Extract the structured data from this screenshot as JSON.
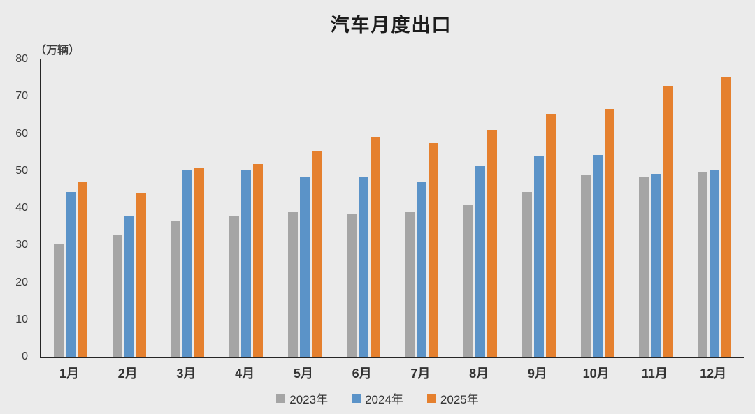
{
  "page": {
    "background_color": "#ebebeb",
    "axis_color": "#262626"
  },
  "chart_data": {
    "type": "bar",
    "title": "汽车月度出口",
    "unit_label": "（万辆）",
    "categories": [
      "1月",
      "2月",
      "3月",
      "4月",
      "5月",
      "6月",
      "7月",
      "8月",
      "9月",
      "10月",
      "11月",
      "12月"
    ],
    "series": [
      {
        "name": "2023年",
        "color": "#a5a5a5",
        "values": [
          30.2,
          32.9,
          36.4,
          37.7,
          38.9,
          38.3,
          39.1,
          40.8,
          44.3,
          48.8,
          48.2,
          49.8
        ]
      },
      {
        "name": "2024年",
        "color": "#5b93c8",
        "values": [
          44.3,
          37.7,
          50.2,
          50.4,
          48.2,
          48.5,
          46.9,
          51.3,
          54.0,
          54.3,
          49.2,
          50.4
        ]
      },
      {
        "name": "2025年",
        "color": "#e5802e",
        "values": [
          47.0,
          44.1,
          50.8,
          51.8,
          55.2,
          59.1,
          57.4,
          61.1,
          65.1,
          66.6,
          72.9,
          75.3
        ]
      }
    ],
    "ylim": [
      0,
      80
    ],
    "yticks": [
      0,
      10,
      20,
      30,
      40,
      50,
      60,
      70,
      80
    ],
    "grid": false,
    "legend_position": "bottom"
  }
}
